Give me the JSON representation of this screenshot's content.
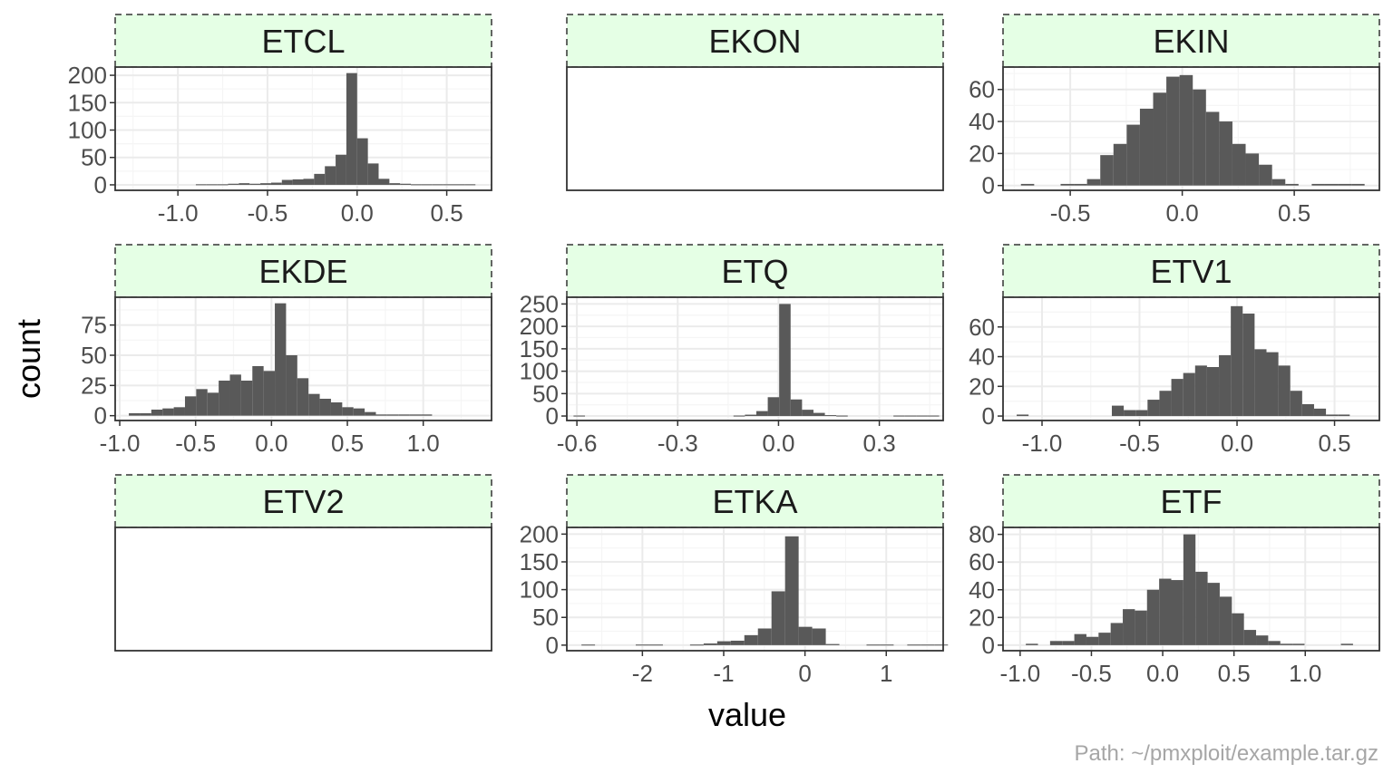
{
  "page": {
    "y_axis_label": "count",
    "x_axis_label": "value",
    "caption": "Path: ~/pmxploit/example.tar.gz"
  },
  "colors": {
    "strip_fill": "#e5ffe5",
    "strip_border": "#333333",
    "bar_fill": "#595959",
    "panel_border": "#333333",
    "grid_major": "#ebebeb",
    "grid_minor": "#f5f5f5",
    "tick_text": "#4d4d4d"
  },
  "chart_data": [
    {
      "type": "bar",
      "title": "ETCL",
      "xlim": [
        -1.35,
        0.75
      ],
      "ylim": [
        -10,
        215
      ],
      "xticks": [
        -1.0,
        -0.5,
        0.0,
        0.5
      ],
      "xtick_labels": [
        "-1.0",
        "-0.5",
        "0.0",
        "0.5"
      ],
      "yticks": [
        0,
        50,
        100,
        150,
        200
      ],
      "ytick_labels": [
        "0",
        "50",
        "100",
        "150",
        "200"
      ],
      "bin_start": -0.9,
      "bin_width": 0.06,
      "values": [
        1,
        1,
        1,
        2,
        3,
        2,
        3,
        4,
        9,
        10,
        11,
        20,
        34,
        55,
        204,
        85,
        39,
        11,
        3,
        2,
        1,
        1,
        1,
        1,
        1,
        1
      ]
    },
    {
      "type": "bar",
      "title": "EKON",
      "empty": true
    },
    {
      "type": "bar",
      "title": "EKIN",
      "xlim": [
        -0.8,
        0.88
      ],
      "ylim": [
        -3,
        74
      ],
      "xticks": [
        -0.5,
        0.0,
        0.5
      ],
      "xtick_labels": [
        "-0.5",
        "0.0",
        "0.5"
      ],
      "yticks": [
        0,
        20,
        40,
        60
      ],
      "ytick_labels": [
        "0",
        "20",
        "40",
        "60"
      ],
      "bin_start": -0.72,
      "bin_width": 0.059,
      "values": [
        1,
        0,
        0,
        1,
        1,
        4,
        19,
        26,
        38,
        48,
        58,
        68,
        69,
        60,
        46,
        40,
        26,
        20,
        13,
        4,
        1,
        0,
        1,
        1,
        1,
        1
      ]
    },
    {
      "type": "bar",
      "title": "EKDE",
      "xlim": [
        -1.03,
        1.45
      ],
      "ylim": [
        -4,
        98
      ],
      "xticks": [
        -1.0,
        -0.5,
        0.0,
        0.5,
        1.0
      ],
      "xtick_labels": [
        "-1.0",
        "-0.5",
        "0.0",
        "0.5",
        "1.0"
      ],
      "yticks": [
        0,
        25,
        50,
        75
      ],
      "ytick_labels": [
        "0",
        "25",
        "50",
        "75"
      ],
      "bin_start": -0.94,
      "bin_width": 0.074,
      "values": [
        2,
        2,
        5,
        6,
        7,
        16,
        22,
        19,
        29,
        34,
        29,
        41,
        37,
        93,
        50,
        31,
        18,
        14,
        11,
        7,
        6,
        3,
        1,
        1,
        1,
        1,
        1
      ]
    },
    {
      "type": "bar",
      "title": "ETQ",
      "xlim": [
        -0.63,
        0.49
      ],
      "ylim": [
        -10,
        265
      ],
      "xticks": [
        -0.6,
        -0.3,
        0.0,
        0.3
      ],
      "xtick_labels": [
        "-0.6",
        "-0.3",
        "0.0",
        "0.3"
      ],
      "yticks": [
        0,
        50,
        100,
        150,
        200,
        250
      ],
      "ytick_labels": [
        "0",
        "50",
        "100",
        "150",
        "200",
        "250"
      ],
      "bin_start": -0.61,
      "bin_width": 0.034,
      "values": [
        1,
        0,
        0,
        0,
        0,
        0,
        0,
        0,
        0,
        0,
        0,
        0,
        0,
        0,
        1,
        3,
        11,
        42,
        250,
        37,
        14,
        7,
        2,
        1,
        0,
        0,
        0,
        0,
        1,
        1,
        1,
        1
      ]
    },
    {
      "type": "bar",
      "title": "ETV1",
      "xlim": [
        -1.2,
        0.73
      ],
      "ylim": [
        -3,
        80
      ],
      "xticks": [
        -1.0,
        -0.5,
        0.0,
        0.5
      ],
      "xtick_labels": [
        "-1.0",
        "-0.5",
        "0.0",
        "0.5"
      ],
      "yticks": [
        0,
        20,
        40,
        60
      ],
      "ytick_labels": [
        "0",
        "20",
        "40",
        "60"
      ],
      "bin_start": -1.13,
      "bin_width": 0.061,
      "values": [
        1,
        0,
        0,
        0,
        0,
        0,
        0,
        0,
        7,
        4,
        4,
        11,
        17,
        25,
        29,
        34,
        33,
        41,
        74,
        69,
        45,
        43,
        34,
        17,
        8,
        5,
        1,
        1
      ]
    },
    {
      "type": "bar",
      "title": "ETV2",
      "empty": true
    },
    {
      "type": "bar",
      "title": "ETKA",
      "xlim": [
        -2.93,
        1.7
      ],
      "ylim": [
        -10,
        212
      ],
      "xticks": [
        -2,
        -1,
        0,
        1
      ],
      "xtick_labels": [
        "-2",
        "-1",
        "0",
        "1"
      ],
      "yticks": [
        0,
        50,
        100,
        150,
        200
      ],
      "ytick_labels": [
        "0",
        "50",
        "100",
        "150",
        "200"
      ],
      "bin_start": -2.75,
      "bin_width": 0.167,
      "values": [
        1,
        0,
        0,
        0,
        1,
        1,
        0,
        0,
        1,
        3,
        7,
        8,
        18,
        30,
        97,
        196,
        33,
        30,
        2,
        0,
        0,
        1,
        1,
        0,
        1,
        1,
        1
      ]
    },
    {
      "type": "bar",
      "title": "ETF",
      "xlim": [
        -1.12,
        1.52
      ],
      "ylim": [
        -4,
        85
      ],
      "xticks": [
        -1.0,
        -0.5,
        0.0,
        0.5,
        1.0
      ],
      "xtick_labels": [
        "-1.0",
        "-0.5",
        "0.0",
        "0.5",
        "1.0"
      ],
      "yticks": [
        0,
        20,
        40,
        60,
        80
      ],
      "ytick_labels": [
        "0",
        "20",
        "40",
        "60",
        "80"
      ],
      "bin_start": -0.96,
      "bin_width": 0.085,
      "values": [
        1,
        0,
        3,
        3,
        8,
        6,
        9,
        16,
        26,
        25,
        40,
        48,
        47,
        80,
        53,
        45,
        35,
        23,
        11,
        7,
        3,
        1,
        1,
        0,
        0,
        0,
        1
      ]
    }
  ]
}
